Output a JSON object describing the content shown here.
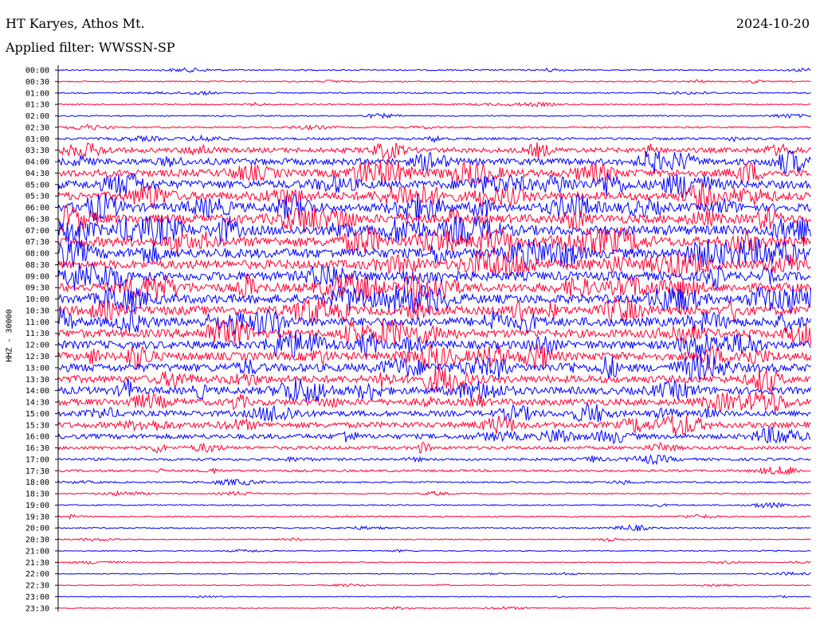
{
  "header": {
    "station": "HT Karyes, Athos Mt.",
    "date": "2024-10-20",
    "filter": "Applied filter: WWSSN-SP"
  },
  "chart_data": {
    "type": "line",
    "title": "HT Karyes, Athos Mt.",
    "ylabel": "HHZ - 30000",
    "tick_labels": [
      "00:00",
      "00:30",
      "01:00",
      "01:30",
      "02:00",
      "02:30",
      "03:00",
      "03:30",
      "04:00",
      "04:30",
      "05:00",
      "05:30",
      "06:00",
      "06:30",
      "07:00",
      "07:30",
      "08:00",
      "08:30",
      "09:00",
      "09:30",
      "10:00",
      "10:30",
      "11:00",
      "11:30",
      "12:00",
      "12:30",
      "13:00",
      "13:30",
      "14:00",
      "14:30",
      "15:00",
      "15:30",
      "16:00",
      "16:30",
      "17:00",
      "17:30",
      "18:00",
      "18:30",
      "19:00",
      "19:30",
      "20:00",
      "20:30",
      "21:00",
      "21:30",
      "22:00",
      "22:30",
      "23:00",
      "23:30"
    ],
    "trace_colors": [
      "#0000ff",
      "#ff0033"
    ],
    "noise_level": [
      0.8,
      0.8,
      0.8,
      0.8,
      0.8,
      1.0,
      1.5,
      3.0,
      4.0,
      4.5,
      5.0,
      5.0,
      5.0,
      5.5,
      6.0,
      6.0,
      6.0,
      5.5,
      5.5,
      5.5,
      5.5,
      5.5,
      5.5,
      5.0,
      5.0,
      5.0,
      5.0,
      4.5,
      4.5,
      4.0,
      3.5,
      3.5,
      3.0,
      2.0,
      1.6,
      1.4,
      1.0,
      0.8,
      0.8,
      0.8,
      0.8,
      0.6,
      0.6,
      0.6,
      0.5,
      0.5,
      0.5,
      0.5
    ],
    "grid": false
  }
}
